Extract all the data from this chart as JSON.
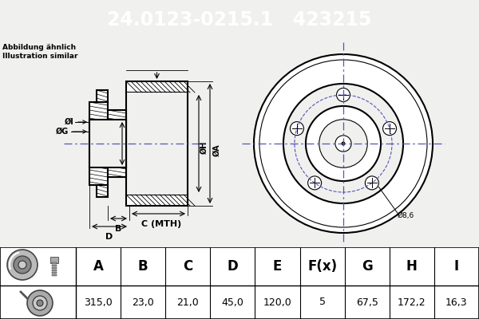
{
  "title_text": "24.0123-0215.1   423215",
  "title_bg": "#1855b0",
  "title_color": "#ffffff",
  "subtitle1": "Abbildung ähnlich",
  "subtitle2": "Illustration similar",
  "table_headers": [
    "A",
    "B",
    "C",
    "D",
    "E",
    "F(x)",
    "G",
    "H",
    "I"
  ],
  "table_values": [
    "315,0",
    "23,0",
    "21,0",
    "45,0",
    "120,0",
    "5",
    "67,5",
    "172,2",
    "16,3"
  ],
  "annotation_8_6": "Ø8,6",
  "bg_color": "#f0f0ee",
  "line_color": "#000000",
  "blue_dash": "#5555bb",
  "hatch_color": "#000000"
}
